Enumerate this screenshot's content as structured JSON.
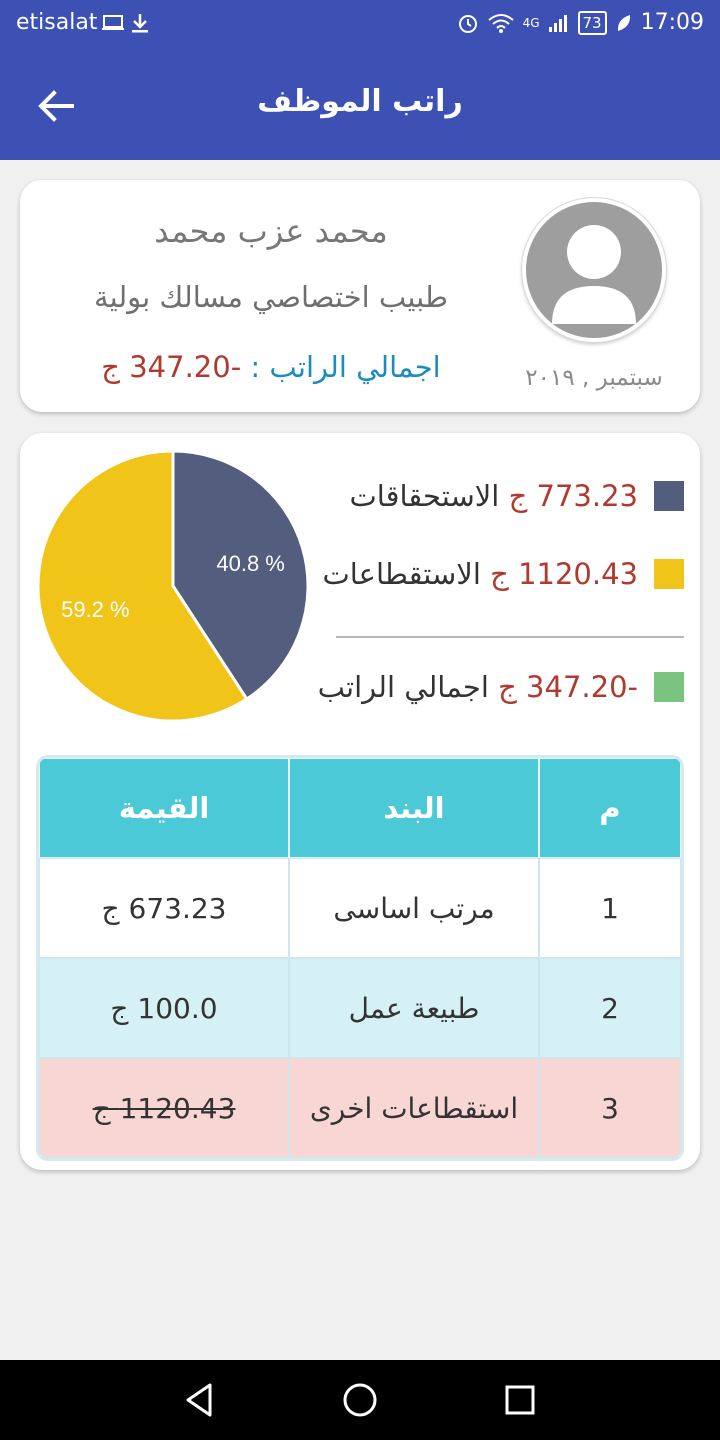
{
  "status_bar": {
    "carrier": "etisalat",
    "battery": "73",
    "network": "4G",
    "time": "17:09"
  },
  "app_bar": {
    "title": "راتب الموظف",
    "back_icon": "arrow-left-icon"
  },
  "profile": {
    "name": "محمد عزب محمد",
    "job": "طبيب اختصاصي مسالك بولية",
    "total_label": "اجمالي الراتب :",
    "total_value": "-347.20 ج",
    "month": "سبتمبر , ٢٠١٩",
    "avatar_icon": "user-avatar-icon"
  },
  "legend": [
    {
      "value": "773.23 ج",
      "label": "الاستحقاقات",
      "color": "#535d7e"
    },
    {
      "value": "1120.43 ج",
      "label": "الاستقطاعات",
      "color": "#f0c419"
    },
    {
      "value": "-347.20 ج",
      "label": "اجمالي الراتب",
      "color": "#7ac47f"
    }
  ],
  "chart_data": {
    "type": "pie",
    "slices": [
      {
        "label": "الاستحقاقات",
        "value": 40.8,
        "display": "40.8 %",
        "color": "#535d7e"
      },
      {
        "label": "الاستقطاعات",
        "value": 59.2,
        "display": "59.2 %",
        "color": "#f0c419"
      }
    ]
  },
  "table": {
    "headers": {
      "num": "م",
      "item": "البند",
      "value": "القيمة"
    },
    "rows": [
      {
        "num": "1",
        "item": "مرتب اساسى",
        "value": "673.23 ج"
      },
      {
        "num": "2",
        "item": "طبيعة عمل",
        "value": "100.0 ج"
      },
      {
        "num": "3",
        "item": "استقطاعات اخرى",
        "value": "1120.43 ج"
      }
    ]
  },
  "nav_bar": {
    "back": "nav-back-icon",
    "home": "nav-home-icon",
    "recents": "nav-recents-icon"
  }
}
